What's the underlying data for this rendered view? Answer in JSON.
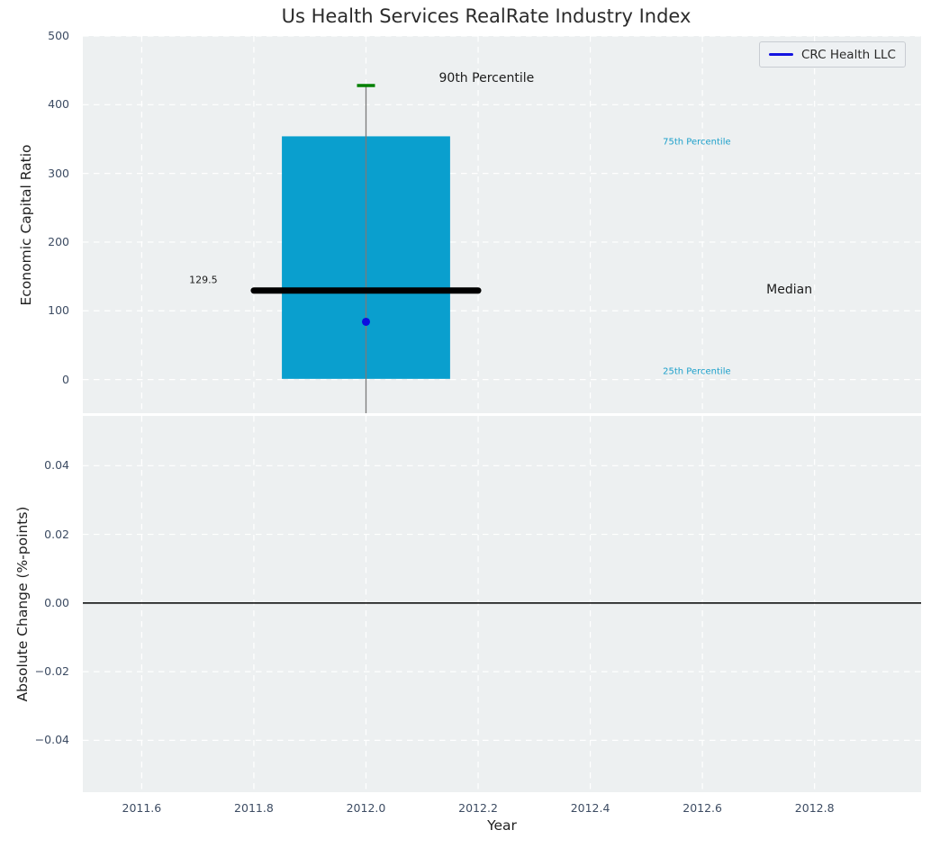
{
  "title": "Us Health Services RealRate Industry Index",
  "legend": {
    "label": "CRC Health LLC",
    "line_color": "#1414e0"
  },
  "colors": {
    "figure_bg": "#ffffff",
    "axes_bg": "#edf0f1",
    "grid": "#ffffff",
    "box_fill": "#0a9fce",
    "median_line": "#000000",
    "whisker_line": "#7a7a7a",
    "p90_cap": "#008000",
    "company_point": "#0d0de0",
    "zero_line": "#000000",
    "tick_text": "#3d4c63",
    "annotation_cyan": "#1b9fca",
    "annotation_black": "#1c1c1c"
  },
  "chart_data": [
    {
      "type": "box",
      "subplot": "top",
      "ylabel": "Economic Capital Ratio",
      "xlim": [
        2011.495,
        2012.99
      ],
      "ylim": [
        -49,
        500
      ],
      "yticks": [
        0,
        100,
        200,
        300,
        400,
        500
      ],
      "ytick_labels": [
        "0",
        "100",
        "200",
        "300",
        "400",
        "500"
      ],
      "xticks": [
        2011.6,
        2011.8,
        2012.0,
        2012.2,
        2012.4,
        2012.6,
        2012.8
      ],
      "grid": "white dashed, both axes",
      "box": {
        "x_center": 2012.0,
        "box_left": 2011.85,
        "box_right": 2012.15,
        "q1": 1,
        "median": 129.5,
        "q3": 354,
        "p90": 428,
        "whisker_low": -49,
        "whisker_low_clipped": true
      },
      "median_line": {
        "x0": 2011.8,
        "x1": 2012.2,
        "value": 129.5
      },
      "company_point": {
        "name": "CRC Health LLC",
        "x": 2012.0,
        "y": 84
      },
      "annotations": [
        {
          "text": "90th Percentile",
          "x": 2012.215,
          "y": 438,
          "color": "#1c1c1c",
          "size": 14
        },
        {
          "text": "75th Percentile",
          "x": 2012.59,
          "y": 345,
          "color": "#1b9fca",
          "size": 10
        },
        {
          "text": "Median",
          "x": 2012.755,
          "y": 130,
          "color": "#1c1c1c",
          "size": 14
        },
        {
          "text": "25th Percentile",
          "x": 2012.59,
          "y": 11,
          "color": "#1b9fca",
          "size": 10
        },
        {
          "text": "129.5",
          "x": 2011.71,
          "y": 145,
          "color": "#1c1c1c",
          "size": 11
        }
      ]
    },
    {
      "type": "line",
      "subplot": "bottom",
      "ylabel": "Absolute Change (%-points)",
      "xlabel": "Year",
      "xlim": [
        2011.495,
        2012.99
      ],
      "ylim": [
        -0.0551,
        0.0545
      ],
      "yticks": [
        0.04,
        0.02,
        0.0,
        -0.02,
        -0.04
      ],
      "ytick_labels": [
        "0.04",
        "0.02",
        "0.00",
        "−0.02",
        "−0.04"
      ],
      "xticks": [
        2011.6,
        2011.8,
        2012.0,
        2012.2,
        2012.4,
        2012.6,
        2012.8
      ],
      "xtick_labels": [
        "2011.6",
        "2011.8",
        "2012.0",
        "2012.2",
        "2012.4",
        "2012.6",
        "2012.8"
      ],
      "zero_line": 0.0,
      "series": []
    }
  ]
}
